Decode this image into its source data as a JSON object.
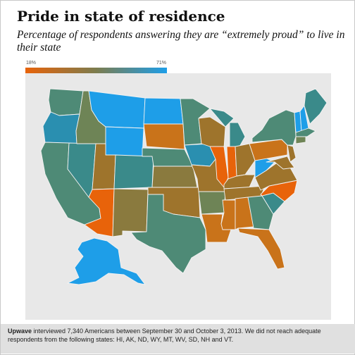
{
  "title": "Pride in state of residence",
  "subtitle": "Percentage of respondents answering they are “extremely proud” to live in their state",
  "legend": {
    "min_label": "18%",
    "max_label": "71%",
    "min_color": "#e8630a",
    "max_color": "#1e9ee8"
  },
  "footer": {
    "brand": "Upwave",
    "text": " interviewed 7,340 Americans between September 30 and October 3, 2013. We did not reach adequate respondents from the following states: HI, AK, ND, WY, MT, WV, SD, NH and VT."
  },
  "colors": {
    "blue": "#1e9ee8",
    "teal": "#2a8fb0",
    "teal_green": "#3a8a8a",
    "slate_green": "#4e8a76",
    "olive": "#6e8456",
    "brown_olive": "#8a7a3e",
    "brown": "#9e742c",
    "orange": "#e8630a",
    "orange_mid": "#c9731a",
    "background": "#e8e8e8"
  },
  "map": {
    "states": [
      {
        "id": "WA",
        "color": "slate_green"
      },
      {
        "id": "OR",
        "color": "teal"
      },
      {
        "id": "CA",
        "color": "slate_green"
      },
      {
        "id": "NV",
        "color": "teal_green"
      },
      {
        "id": "ID",
        "color": "olive"
      },
      {
        "id": "MT",
        "color": "blue"
      },
      {
        "id": "WY",
        "color": "blue"
      },
      {
        "id": "UT",
        "color": "brown"
      },
      {
        "id": "AZ",
        "color": "orange"
      },
      {
        "id": "CO",
        "color": "teal_green"
      },
      {
        "id": "NM",
        "color": "brown_olive"
      },
      {
        "id": "ND",
        "color": "blue"
      },
      {
        "id": "SD",
        "color": "orange_mid"
      },
      {
        "id": "NE",
        "color": "slate_green"
      },
      {
        "id": "KS",
        "color": "brown_olive"
      },
      {
        "id": "OK",
        "color": "brown"
      },
      {
        "id": "TX",
        "color": "slate_green"
      },
      {
        "id": "MN",
        "color": "slate_green"
      },
      {
        "id": "IA",
        "color": "teal"
      },
      {
        "id": "MO",
        "color": "brown"
      },
      {
        "id": "AR",
        "color": "olive"
      },
      {
        "id": "LA",
        "color": "orange_mid"
      },
      {
        "id": "WI",
        "color": "brown"
      },
      {
        "id": "IL",
        "color": "orange"
      },
      {
        "id": "MI",
        "color": "teal_green"
      },
      {
        "id": "IN",
        "color": "orange"
      },
      {
        "id": "OH",
        "color": "brown"
      },
      {
        "id": "KY",
        "color": "brown"
      },
      {
        "id": "TN",
        "color": "brown"
      },
      {
        "id": "MS",
        "color": "orange_mid"
      },
      {
        "id": "AL",
        "color": "orange_mid"
      },
      {
        "id": "GA",
        "color": "slate_green"
      },
      {
        "id": "FL",
        "color": "orange_mid"
      },
      {
        "id": "SC",
        "color": "teal_green"
      },
      {
        "id": "NC",
        "color": "orange"
      },
      {
        "id": "VA",
        "color": "brown"
      },
      {
        "id": "WV",
        "color": "blue"
      },
      {
        "id": "PA",
        "color": "orange_mid"
      },
      {
        "id": "NY",
        "color": "slate_green"
      },
      {
        "id": "NJ",
        "color": "brown"
      },
      {
        "id": "MD",
        "color": "brown"
      },
      {
        "id": "VT",
        "color": "blue"
      },
      {
        "id": "NH",
        "color": "blue"
      },
      {
        "id": "ME",
        "color": "teal_green"
      },
      {
        "id": "MA",
        "color": "slate_green"
      },
      {
        "id": "CT",
        "color": "olive"
      },
      {
        "id": "AK",
        "color": "blue"
      }
    ]
  }
}
